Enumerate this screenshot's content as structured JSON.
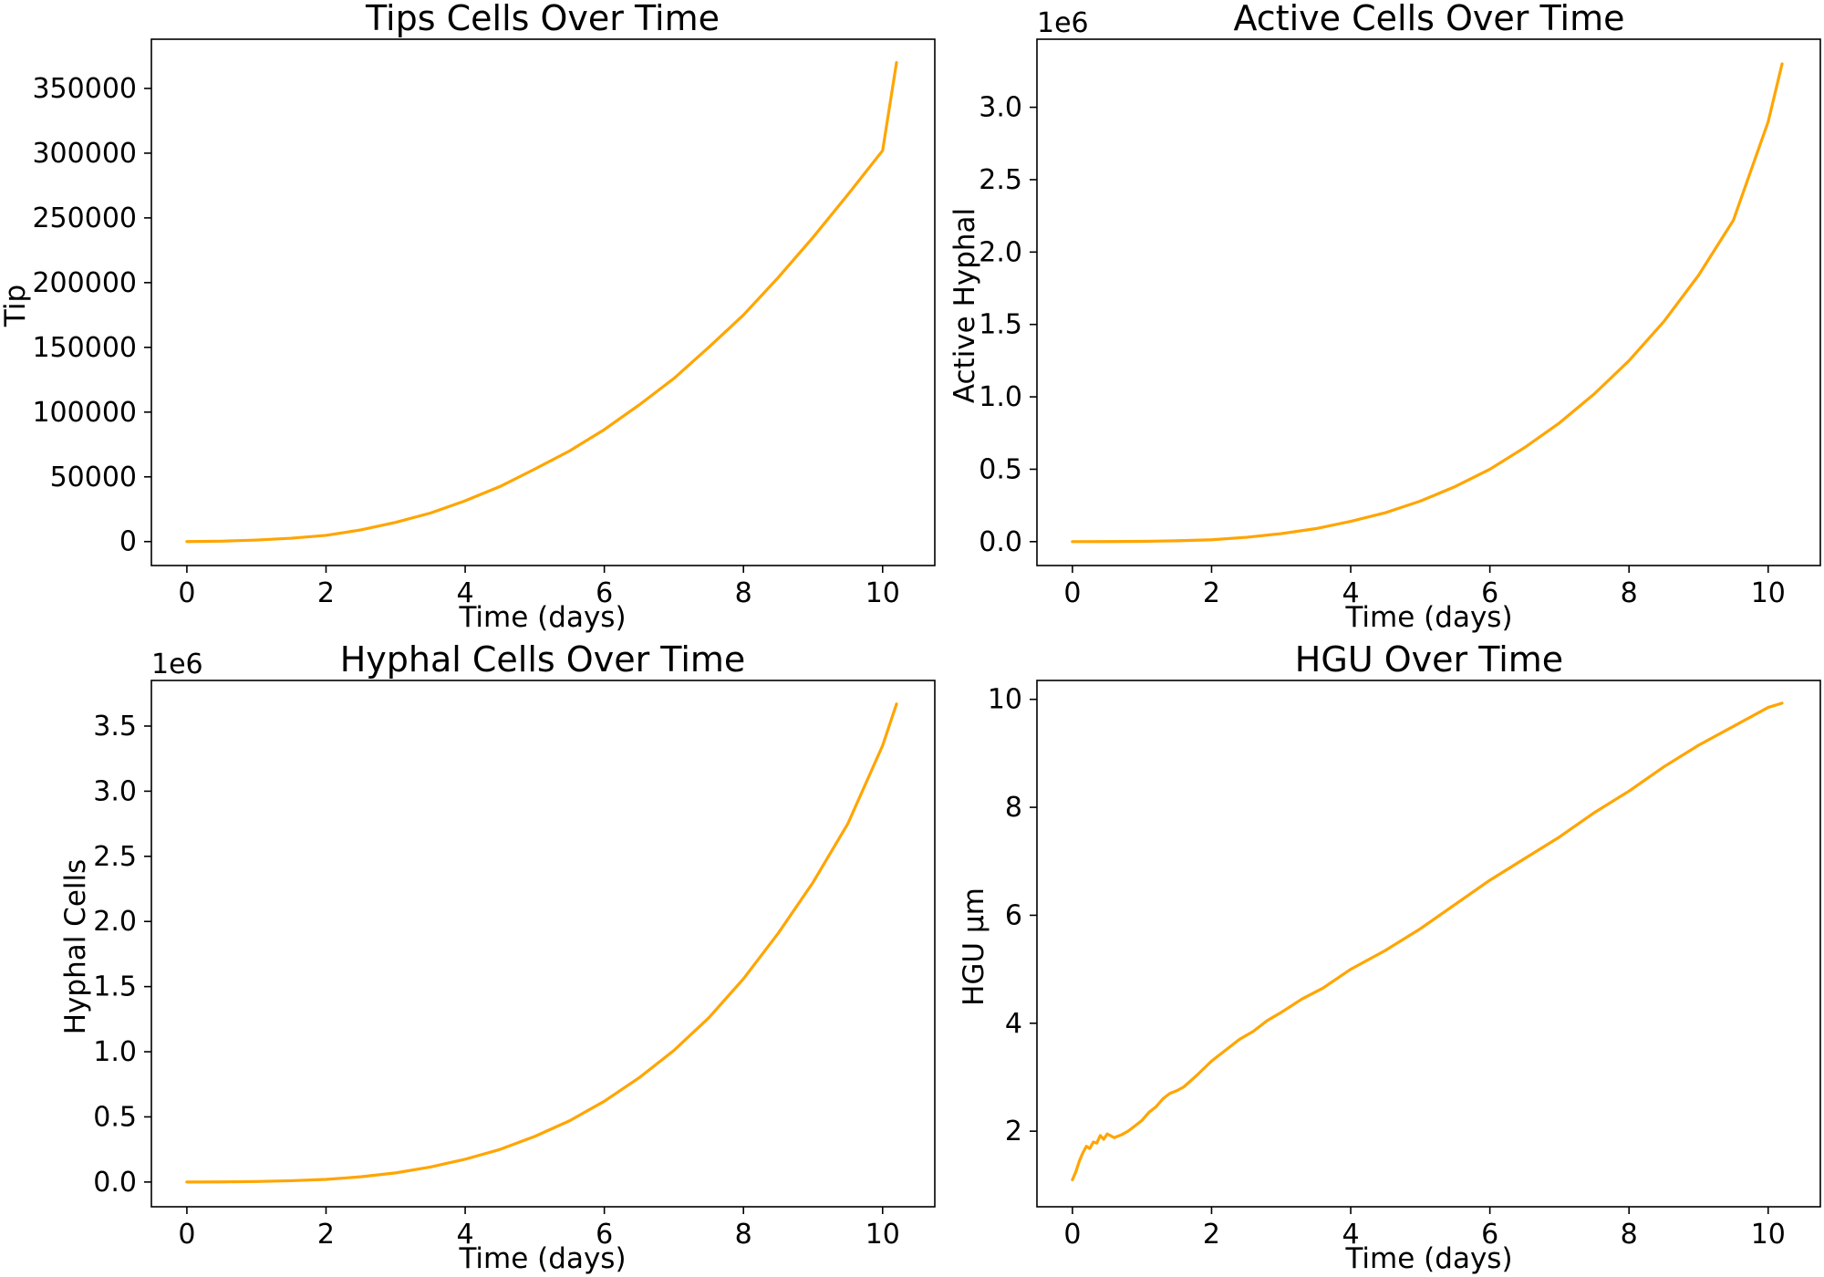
{
  "figure": {
    "line_color": "#FFA500"
  },
  "chart_data": [
    {
      "type": "line",
      "title": "Tips Cells Over Time",
      "xlabel": "Time (days)",
      "ylabel": "Tip",
      "y_offset_label": "",
      "xlim": [
        -0.51,
        10.75
      ],
      "ylim": [
        -18500,
        388000
      ],
      "x_ticks": [
        0,
        2,
        4,
        6,
        8,
        10
      ],
      "x_tick_labels": [
        "0",
        "2",
        "4",
        "6",
        "8",
        "10"
      ],
      "y_ticks": [
        0,
        50000,
        100000,
        150000,
        200000,
        250000,
        300000,
        350000
      ],
      "y_tick_labels": [
        "0",
        "50000",
        "100000",
        "150000",
        "200000",
        "250000",
        "300000",
        "350000"
      ],
      "series": [
        {
          "x": [
            0,
            0.5,
            1,
            1.5,
            2,
            2.5,
            3,
            3.5,
            4,
            4.5,
            5,
            5.5,
            6,
            6.5,
            7,
            7.5,
            8,
            8.5,
            9,
            9.5,
            10,
            10.2
          ],
          "y": [
            0,
            300,
            1200,
            2600,
            4800,
            9000,
            14800,
            22000,
            31500,
            42500,
            56000,
            70000,
            86500,
            105500,
            126000,
            150000,
            175000,
            204000,
            235000,
            268000,
            302000,
            370000
          ]
        }
      ]
    },
    {
      "type": "line",
      "title": "Active Cells Over Time",
      "xlabel": "Time (days)",
      "ylabel": "Active Hyphal",
      "y_offset_label": "1e6",
      "xlim": [
        -0.51,
        10.75
      ],
      "ylim": [
        -0.165,
        3.47
      ],
      "x_ticks": [
        0,
        2,
        4,
        6,
        8,
        10
      ],
      "x_tick_labels": [
        "0",
        "2",
        "4",
        "6",
        "8",
        "10"
      ],
      "y_ticks": [
        0.0,
        0.5,
        1.0,
        1.5,
        2.0,
        2.5,
        3.0
      ],
      "y_tick_labels": [
        "0.0",
        "0.5",
        "1.0",
        "1.5",
        "2.0",
        "2.5",
        "3.0"
      ],
      "series": [
        {
          "x": [
            0,
            0.5,
            1,
            1.5,
            2,
            2.5,
            3,
            3.5,
            4,
            4.5,
            5,
            5.5,
            6,
            6.5,
            7,
            7.5,
            8,
            8.5,
            9,
            9.5,
            10,
            10.2
          ],
          "y": [
            0,
            0.0005,
            0.002,
            0.006,
            0.013,
            0.03,
            0.055,
            0.09,
            0.14,
            0.2,
            0.28,
            0.38,
            0.5,
            0.65,
            0.82,
            1.02,
            1.25,
            1.52,
            1.84,
            2.22,
            2.9,
            3.3
          ]
        }
      ]
    },
    {
      "type": "line",
      "title": "Hyphal Cells Over Time",
      "xlabel": "Time (days)",
      "ylabel": "Hyphal Cells",
      "y_offset_label": "1e6",
      "xlim": [
        -0.51,
        10.75
      ],
      "ylim": [
        -0.19,
        3.85
      ],
      "x_ticks": [
        0,
        2,
        4,
        6,
        8,
        10
      ],
      "x_tick_labels": [
        "0",
        "2",
        "4",
        "6",
        "8",
        "10"
      ],
      "y_ticks": [
        0.0,
        0.5,
        1.0,
        1.5,
        2.0,
        2.5,
        3.0,
        3.5
      ],
      "y_tick_labels": [
        "0.0",
        "0.5",
        "1.0",
        "1.5",
        "2.0",
        "2.5",
        "3.0",
        "3.5"
      ],
      "series": [
        {
          "x": [
            0,
            0.5,
            1,
            1.5,
            2,
            2.5,
            3,
            3.5,
            4,
            4.5,
            5,
            5.5,
            6,
            6.5,
            7,
            7.5,
            8,
            8.5,
            9,
            9.5,
            10,
            10.2
          ],
          "y": [
            0,
            0.001,
            0.004,
            0.01,
            0.02,
            0.04,
            0.07,
            0.115,
            0.175,
            0.25,
            0.35,
            0.47,
            0.62,
            0.8,
            1.01,
            1.26,
            1.56,
            1.91,
            2.3,
            2.75,
            3.35,
            3.67
          ]
        }
      ]
    },
    {
      "type": "line",
      "title": "HGU Over Time",
      "xlabel": "Time (days)",
      "ylabel": "HGU µm",
      "y_offset_label": "",
      "xlim": [
        -0.51,
        10.75
      ],
      "ylim": [
        0.6,
        10.35
      ],
      "x_ticks": [
        0,
        2,
        4,
        6,
        8,
        10
      ],
      "x_tick_labels": [
        "0",
        "2",
        "4",
        "6",
        "8",
        "10"
      ],
      "y_ticks": [
        2,
        4,
        6,
        8,
        10
      ],
      "y_tick_labels": [
        "2",
        "4",
        "6",
        "8",
        "10"
      ],
      "series": [
        {
          "x": [
            0,
            0.05,
            0.1,
            0.15,
            0.2,
            0.25,
            0.3,
            0.35,
            0.4,
            0.45,
            0.5,
            0.6,
            0.7,
            0.8,
            0.9,
            1.0,
            1.1,
            1.2,
            1.3,
            1.4,
            1.5,
            1.6,
            1.8,
            2.0,
            2.2,
            2.4,
            2.6,
            2.8,
            3.0,
            3.3,
            3.6,
            4.0,
            4.5,
            5.0,
            5.5,
            6.0,
            6.5,
            7.0,
            7.5,
            8.0,
            8.5,
            9.0,
            9.5,
            10.0,
            10.2
          ],
          "y": [
            1.1,
            1.25,
            1.45,
            1.6,
            1.72,
            1.68,
            1.8,
            1.78,
            1.92,
            1.85,
            1.95,
            1.88,
            1.93,
            2.0,
            2.1,
            2.2,
            2.35,
            2.45,
            2.6,
            2.7,
            2.75,
            2.82,
            3.05,
            3.3,
            3.5,
            3.7,
            3.85,
            4.05,
            4.2,
            4.45,
            4.65,
            5.0,
            5.35,
            5.75,
            6.2,
            6.65,
            7.05,
            7.45,
            7.9,
            8.3,
            8.75,
            9.15,
            9.5,
            9.85,
            9.93
          ]
        }
      ]
    }
  ]
}
